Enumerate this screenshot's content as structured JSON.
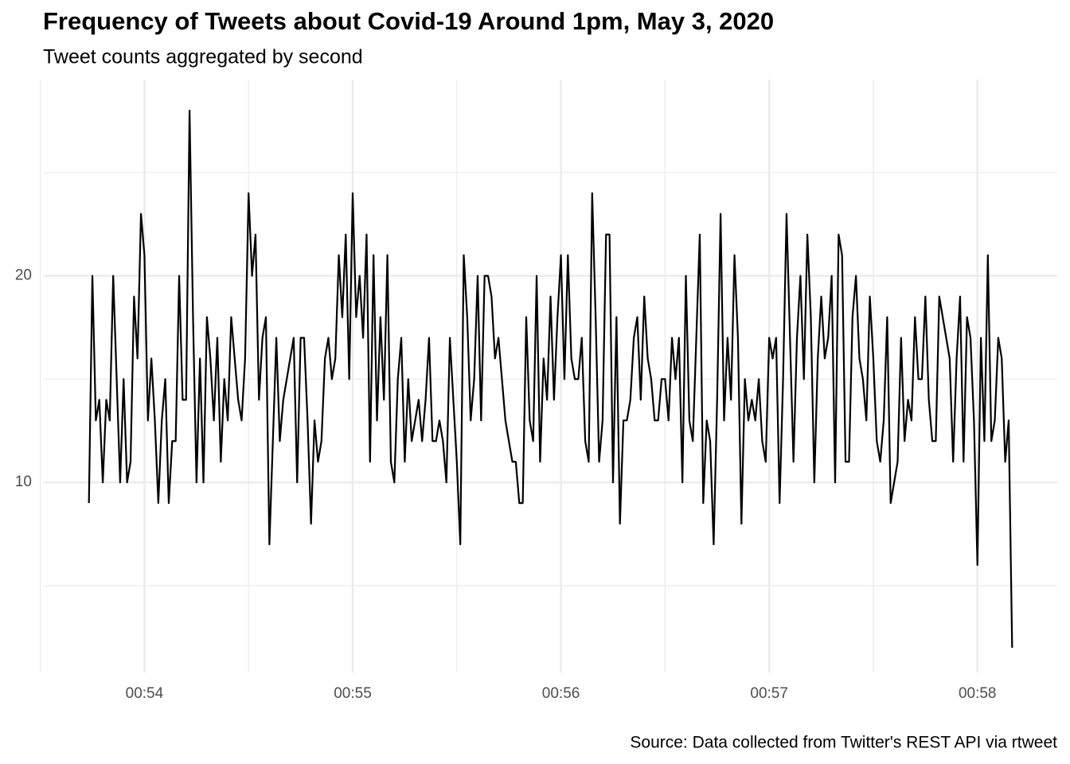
{
  "chart_data": {
    "type": "line",
    "title": "Frequency of Tweets about Covid-19 Around 1pm, May 3, 2020",
    "subtitle": "Tweet counts aggregated by second",
    "caption": "Source: Data collected from Twitter's REST API via rtweet",
    "color": "#000000",
    "grid": true,
    "x": [
      "00:53:44",
      "00:53:45",
      "00:53:46",
      "00:53:47",
      "00:53:48",
      "00:53:49",
      "00:53:50",
      "00:53:51",
      "00:53:52",
      "00:53:53",
      "00:53:54",
      "00:53:55",
      "00:53:56",
      "00:53:57",
      "00:53:58",
      "00:53:59",
      "00:54:00",
      "00:54:01",
      "00:54:02",
      "00:54:03",
      "00:54:04",
      "00:54:05",
      "00:54:06",
      "00:54:07",
      "00:54:08",
      "00:54:09",
      "00:54:10",
      "00:54:11",
      "00:54:12",
      "00:54:13",
      "00:54:14",
      "00:54:15",
      "00:54:16",
      "00:54:17",
      "00:54:18",
      "00:54:19",
      "00:54:20",
      "00:54:21",
      "00:54:22",
      "00:54:23",
      "00:54:24",
      "00:54:25",
      "00:54:26",
      "00:54:27",
      "00:54:28",
      "00:54:29",
      "00:54:30",
      "00:54:31",
      "00:54:32",
      "00:54:33",
      "00:54:34",
      "00:54:35",
      "00:54:36",
      "00:54:37",
      "00:54:38",
      "00:54:39",
      "00:54:40",
      "00:54:41",
      "00:54:42",
      "00:54:43",
      "00:54:44",
      "00:54:45",
      "00:54:46",
      "00:54:47",
      "00:54:48",
      "00:54:49",
      "00:54:50",
      "00:54:51",
      "00:54:52",
      "00:54:53",
      "00:54:54",
      "00:54:55",
      "00:54:56",
      "00:54:57",
      "00:54:58",
      "00:54:59",
      "00:55:00",
      "00:55:01",
      "00:55:02",
      "00:55:03",
      "00:55:04",
      "00:55:05",
      "00:55:06",
      "00:55:07",
      "00:55:08",
      "00:55:09",
      "00:55:10",
      "00:55:11",
      "00:55:12",
      "00:55:13",
      "00:55:14",
      "00:55:15",
      "00:55:16",
      "00:55:17",
      "00:55:18",
      "00:55:19",
      "00:55:20",
      "00:55:21",
      "00:55:22",
      "00:55:23",
      "00:55:24",
      "00:55:25",
      "00:55:26",
      "00:55:27",
      "00:55:28",
      "00:55:29",
      "00:55:30",
      "00:55:31",
      "00:55:32",
      "00:55:33",
      "00:55:34",
      "00:55:35",
      "00:55:36",
      "00:55:37",
      "00:55:38",
      "00:55:39",
      "00:55:40",
      "00:55:41",
      "00:55:42",
      "00:55:43",
      "00:55:44",
      "00:55:45",
      "00:55:46",
      "00:55:47",
      "00:55:48",
      "00:55:49",
      "00:55:50",
      "00:55:51",
      "00:55:52",
      "00:55:53",
      "00:55:54",
      "00:55:55",
      "00:55:56",
      "00:55:57",
      "00:55:58",
      "00:55:59",
      "00:56:00",
      "00:56:01",
      "00:56:02",
      "00:56:03",
      "00:56:04",
      "00:56:05",
      "00:56:06",
      "00:56:07",
      "00:56:08",
      "00:56:09",
      "00:56:10",
      "00:56:11",
      "00:56:12",
      "00:56:13",
      "00:56:14",
      "00:56:15",
      "00:56:16",
      "00:56:17",
      "00:56:18",
      "00:56:19",
      "00:56:20",
      "00:56:21",
      "00:56:22",
      "00:56:23",
      "00:56:24",
      "00:56:25",
      "00:56:26",
      "00:56:27",
      "00:56:28",
      "00:56:29",
      "00:56:30",
      "00:56:31",
      "00:56:32",
      "00:56:33",
      "00:56:34",
      "00:56:35",
      "00:56:36",
      "00:56:37",
      "00:56:38",
      "00:56:39",
      "00:56:40",
      "00:56:41",
      "00:56:42",
      "00:56:43",
      "00:56:44",
      "00:56:45",
      "00:56:46",
      "00:56:47",
      "00:56:48",
      "00:56:49",
      "00:56:50",
      "00:56:51",
      "00:56:52",
      "00:56:53",
      "00:56:54",
      "00:56:55",
      "00:56:56",
      "00:56:57",
      "00:56:58",
      "00:56:59",
      "00:57:00",
      "00:57:01",
      "00:57:02",
      "00:57:03",
      "00:57:04",
      "00:57:05",
      "00:57:06",
      "00:57:07",
      "00:57:08",
      "00:57:09",
      "00:57:10",
      "00:57:11",
      "00:57:12",
      "00:57:13",
      "00:57:14",
      "00:57:15",
      "00:57:16",
      "00:57:17",
      "00:57:18",
      "00:57:19",
      "00:57:20",
      "00:57:21",
      "00:57:22",
      "00:57:23",
      "00:57:24",
      "00:57:25",
      "00:57:26",
      "00:57:27",
      "00:57:28",
      "00:57:29",
      "00:57:30",
      "00:57:31",
      "00:57:32",
      "00:57:33",
      "00:57:34",
      "00:57:35",
      "00:57:36",
      "00:57:37",
      "00:57:38",
      "00:57:39",
      "00:57:40",
      "00:57:41",
      "00:57:42",
      "00:57:43",
      "00:57:44",
      "00:57:45",
      "00:57:46",
      "00:57:47",
      "00:57:48",
      "00:57:49",
      "00:57:50",
      "00:57:51",
      "00:57:52",
      "00:57:53",
      "00:57:54",
      "00:57:55",
      "00:57:56",
      "00:57:57",
      "00:57:58",
      "00:57:59",
      "00:58:00",
      "00:58:01",
      "00:58:02",
      "00:58:03",
      "00:58:04",
      "00:58:05",
      "00:58:06",
      "00:58:07",
      "00:58:08",
      "00:58:09",
      "00:58:10"
    ],
    "values": [
      9,
      20,
      13,
      14,
      10,
      14,
      13,
      20,
      15,
      10,
      15,
      10,
      11,
      19,
      16,
      23,
      21,
      13,
      16,
      13,
      9,
      13,
      15,
      9,
      12,
      12,
      20,
      14,
      14,
      28,
      18,
      10,
      16,
      10,
      18,
      16,
      13,
      17,
      11,
      15,
      13,
      18,
      16,
      14,
      13,
      16,
      24,
      20,
      22,
      14,
      17,
      18,
      7,
      12,
      17,
      12,
      14,
      15,
      16,
      17,
      10,
      17,
      17,
      13,
      8,
      13,
      11,
      12,
      16,
      17,
      15,
      16,
      21,
      18,
      22,
      15,
      24,
      18,
      20,
      17,
      22,
      11,
      21,
      13,
      18,
      14,
      21,
      11,
      10,
      15,
      17,
      11,
      15,
      12,
      13,
      14,
      12,
      14,
      17,
      12,
      12,
      13,
      12,
      10,
      17,
      14,
      11,
      7,
      21,
      18,
      13,
      15,
      20,
      13,
      20,
      20,
      19,
      16,
      17,
      15,
      13,
      12,
      11,
      11,
      9,
      9,
      18,
      13,
      12,
      20,
      11,
      16,
      14,
      19,
      14,
      18,
      21,
      15,
      21,
      16,
      15,
      15,
      17,
      12,
      11,
      24,
      18,
      11,
      13,
      22,
      22,
      10,
      18,
      8,
      13,
      13,
      14,
      17,
      18,
      14,
      19,
      16,
      15,
      13,
      13,
      15,
      15,
      13,
      17,
      15,
      17,
      10,
      20,
      13,
      12,
      17,
      22,
      9,
      13,
      12,
      7,
      14,
      23,
      13,
      17,
      14,
      21,
      17,
      8,
      15,
      13,
      14,
      13,
      15,
      12,
      11,
      17,
      16,
      17,
      9,
      15,
      23,
      17,
      11,
      17,
      20,
      15,
      22,
      18,
      10,
      16,
      19,
      16,
      17,
      20,
      10,
      22,
      21,
      11,
      11,
      18,
      20,
      16,
      15,
      13,
      19,
      16,
      12,
      11,
      13,
      18,
      9,
      10,
      11,
      17,
      12,
      14,
      13,
      18,
      15,
      15,
      19,
      14,
      12,
      12,
      19,
      18,
      17,
      16,
      11,
      16,
      19,
      11,
      18,
      17,
      13,
      6,
      17,
      12,
      21,
      12,
      13,
      17,
      16,
      11,
      13,
      2
    ],
    "xlim": [
      "00:53:31",
      "00:58:23"
    ],
    "xticks": [
      "00:54",
      "00:55",
      "00:56",
      "00:57",
      "00:58"
    ],
    "xminor": [
      "00:53:30",
      "00:54:30",
      "00:55:30",
      "00:56:30",
      "00:57:30"
    ],
    "ylim": [
      0.8,
      29.5
    ],
    "yticks": [
      10,
      20
    ],
    "yminor": [
      5,
      15,
      25
    ]
  }
}
